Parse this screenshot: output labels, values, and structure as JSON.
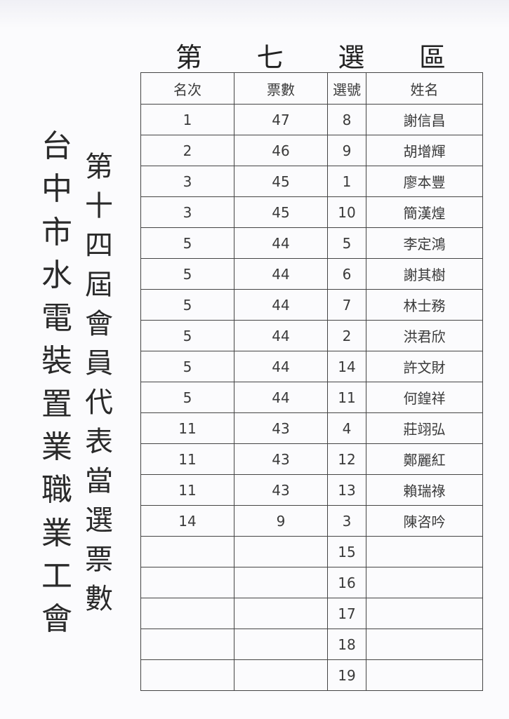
{
  "title": [
    "第",
    "七",
    "選",
    "區"
  ],
  "org_name": "台中市水電裝置業職業工會",
  "subtitle": "第十四屆會員代表當選票數",
  "table": {
    "headers": [
      "名次",
      "票數",
      "選號",
      "姓名"
    ],
    "rows": [
      [
        "1",
        "47",
        "8",
        "謝信昌"
      ],
      [
        "2",
        "46",
        "9",
        "胡增輝"
      ],
      [
        "3",
        "45",
        "1",
        "廖本豐"
      ],
      [
        "3",
        "45",
        "10",
        "簡漢煌"
      ],
      [
        "5",
        "44",
        "5",
        "李定鴻"
      ],
      [
        "5",
        "44",
        "6",
        "謝其樹"
      ],
      [
        "5",
        "44",
        "7",
        "林士務"
      ],
      [
        "5",
        "44",
        "2",
        "洪君欣"
      ],
      [
        "5",
        "44",
        "14",
        "許文財"
      ],
      [
        "5",
        "44",
        "11",
        "何鍠祥"
      ],
      [
        "11",
        "43",
        "4",
        "莊翊弘"
      ],
      [
        "11",
        "43",
        "12",
        "鄭麗紅"
      ],
      [
        "11",
        "43",
        "13",
        "賴瑞祿"
      ],
      [
        "14",
        "9",
        "3",
        "陳咨吟"
      ],
      [
        "",
        "",
        "15",
        ""
      ],
      [
        "",
        "",
        "16",
        ""
      ],
      [
        "",
        "",
        "17",
        ""
      ],
      [
        "",
        "",
        "18",
        ""
      ],
      [
        "",
        "",
        "19",
        ""
      ]
    ]
  }
}
